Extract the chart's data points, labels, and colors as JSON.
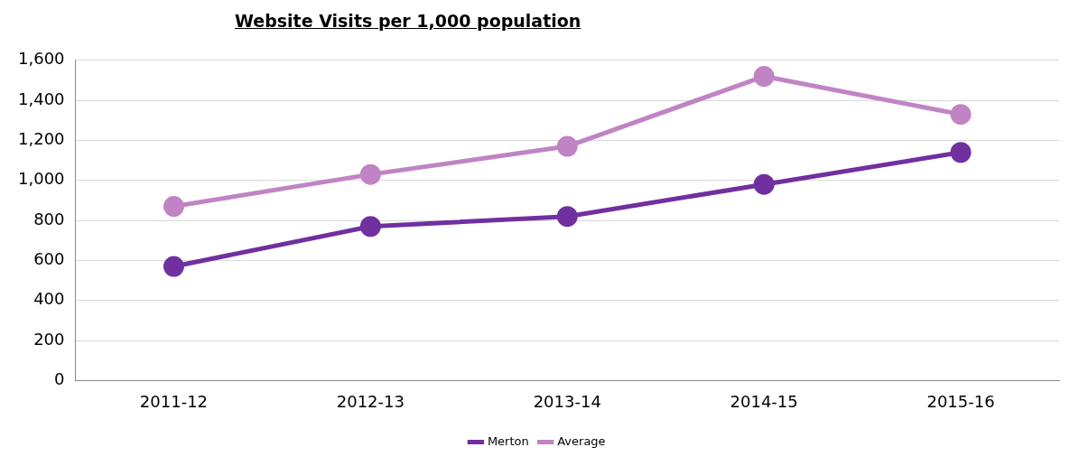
{
  "chart_data": {
    "type": "line",
    "title": "Website Visits per 1,000 population",
    "categories": [
      "2011-12",
      "2012-13",
      "2013-14",
      "2014-15",
      "2015-16"
    ],
    "series": [
      {
        "name": "Merton",
        "color": "#7030a0",
        "values": [
          570,
          770,
          820,
          980,
          1140
        ]
      },
      {
        "name": "Average",
        "color": "#c084c4",
        "values": [
          870,
          1030,
          1170,
          1520,
          1330
        ]
      }
    ],
    "ylim": [
      0,
      1600
    ],
    "yticks": [
      0,
      200,
      400,
      600,
      800,
      {
        "value": 1000,
        "label": "1,000"
      },
      {
        "value": 1200,
        "label": "1,200"
      },
      {
        "value": 1400,
        "label": "1,400"
      },
      {
        "value": 1600,
        "label": "1,600"
      }
    ],
    "grid": "y",
    "legend": "bottom",
    "marker": "circle",
    "line_style": "solid"
  }
}
